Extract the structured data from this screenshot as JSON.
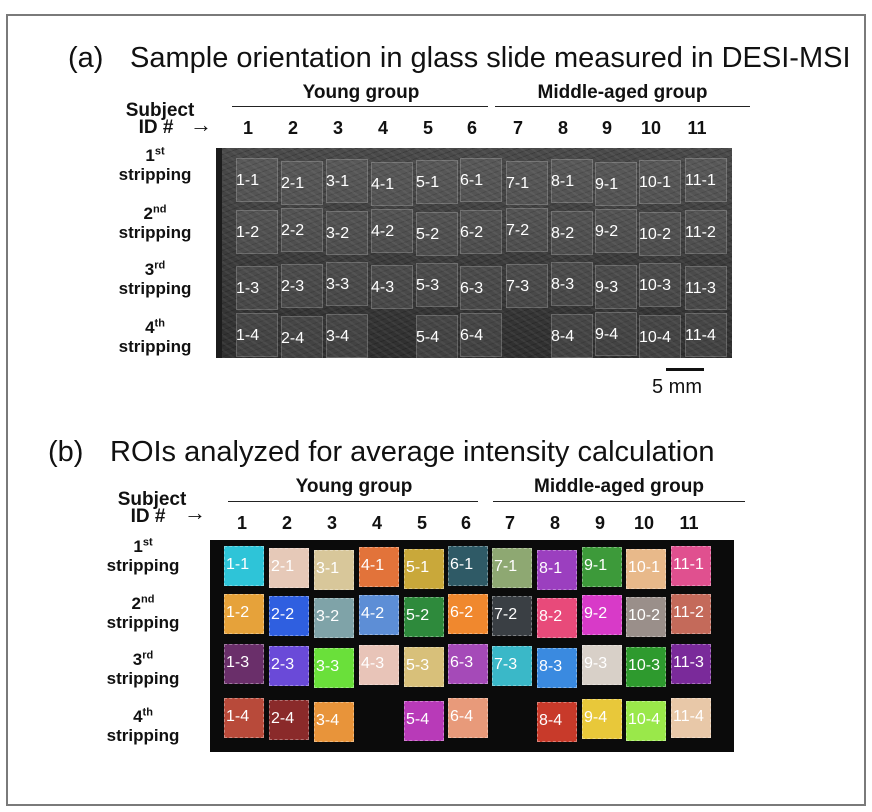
{
  "panel_a": {
    "letter": "(a)",
    "title": "Sample orientation in glass slide measured in DESI-MSI",
    "groups": {
      "young": "Young group",
      "middle": "Middle-aged group"
    },
    "subject_label_1": "Subject",
    "subject_label_2": "ID #",
    "subject_ids": [
      "1",
      "2",
      "3",
      "4",
      "5",
      "6",
      "7",
      "8",
      "9",
      "10",
      "11"
    ],
    "rows": [
      {
        "num": "1",
        "sup": "st",
        "word": "stripping",
        "tiles": [
          "1-1",
          "2-1",
          "3-1",
          "4-1",
          "5-1",
          "6-1",
          "7-1",
          "8-1",
          "9-1",
          "10-1",
          "11-1"
        ]
      },
      {
        "num": "2",
        "sup": "nd",
        "word": "stripping",
        "tiles": [
          "1-2",
          "2-2",
          "3-2",
          "4-2",
          "5-2",
          "6-2",
          "7-2",
          "8-2",
          "9-2",
          "10-2",
          "11-2"
        ]
      },
      {
        "num": "3",
        "sup": "rd",
        "word": "stripping",
        "tiles": [
          "1-3",
          "2-3",
          "3-3",
          "4-3",
          "5-3",
          "6-3",
          "7-3",
          "8-3",
          "9-3",
          "10-3",
          "11-3"
        ]
      },
      {
        "num": "4",
        "sup": "th",
        "word": "stripping",
        "tiles": [
          "1-4",
          "2-4",
          "3-4",
          "",
          "5-4",
          "6-4",
          "",
          "8-4",
          "9-4",
          "10-4",
          "11-4"
        ]
      }
    ],
    "scale_label": "5 mm"
  },
  "panel_b": {
    "letter": "(b)",
    "title": "ROIs analyzed for average intensity calculation",
    "groups": {
      "young": "Young group",
      "middle": "Middle-aged group"
    },
    "subject_label_1": "Subject",
    "subject_label_2": "ID #",
    "subject_ids": [
      "1",
      "2",
      "3",
      "4",
      "5",
      "6",
      "7",
      "8",
      "9",
      "10",
      "11"
    ],
    "rows": [
      {
        "num": "1",
        "sup": "st",
        "word": "stripping",
        "rois": [
          [
            "1-1",
            "#2ec4d8"
          ],
          [
            "2-1",
            "#e6c9b8"
          ],
          [
            "3-1",
            "#d8c79a"
          ],
          [
            "4-1",
            "#e2733a"
          ],
          [
            "5-1",
            "#c9a83a"
          ],
          [
            "6-1",
            "#2f5a66"
          ],
          [
            "7-1",
            "#8ea872"
          ],
          [
            "8-1",
            "#9b3fbf"
          ],
          [
            "9-1",
            "#3d9a3a"
          ],
          [
            "10-1",
            "#e8b98a"
          ],
          [
            "11-1",
            "#e0508f"
          ]
        ]
      },
      {
        "num": "2",
        "sup": "nd",
        "word": "stripping",
        "rois": [
          [
            "1-2",
            "#e6a23a"
          ],
          [
            "2-2",
            "#2f5fe0"
          ],
          [
            "3-2",
            "#7fa3a8"
          ],
          [
            "4-2",
            "#5d8ed6"
          ],
          [
            "5-2",
            "#2e8a3c"
          ],
          [
            "6-2",
            "#f0882e"
          ],
          [
            "7-2",
            "#3a3f44"
          ],
          [
            "8-2",
            "#e84a7a"
          ],
          [
            "9-2",
            "#d83ac8"
          ],
          [
            "10-2",
            "#9a8f8a"
          ],
          [
            "11-2",
            "#c46a5a"
          ]
        ]
      },
      {
        "num": "3",
        "sup": "rd",
        "word": "stripping",
        "rois": [
          [
            "1-3",
            "#6a2f6a"
          ],
          [
            "2-3",
            "#6a4ad8"
          ],
          [
            "3-3",
            "#6ae03a"
          ],
          [
            "4-3",
            "#e8c4b8"
          ],
          [
            "5-3",
            "#d8c07a"
          ],
          [
            "6-3",
            "#a54ab8"
          ],
          [
            "7-3",
            "#3ab8c8"
          ],
          [
            "8-3",
            "#3a8ae0"
          ],
          [
            "9-3",
            "#d8d0c8"
          ],
          [
            "10-3",
            "#2e9a2e"
          ],
          [
            "11-3",
            "#7a2a9a"
          ]
        ]
      },
      {
        "num": "4",
        "sup": "th",
        "word": "stripping",
        "rois": [
          [
            "1-4",
            "#b84a3a"
          ],
          [
            "2-4",
            "#8a2a2a"
          ],
          [
            "3-4",
            "#e8943a"
          ],
          [
            "",
            ""
          ],
          [
            "5-4",
            "#b83ab8"
          ],
          [
            "6-4",
            "#e89a7a"
          ],
          [
            "",
            ""
          ],
          [
            "8-4",
            "#c83a2a"
          ],
          [
            "9-4",
            "#e8c83a"
          ],
          [
            "10-4",
            "#9ae84a"
          ],
          [
            "11-4",
            "#e8c8a8"
          ]
        ]
      }
    ]
  }
}
